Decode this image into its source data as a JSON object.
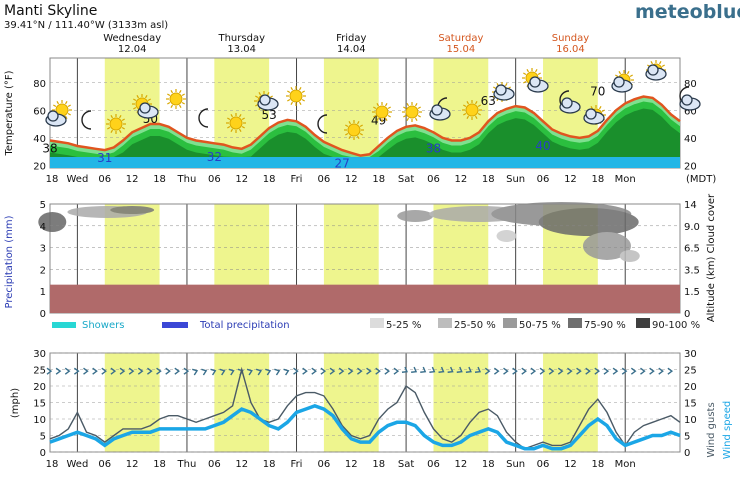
{
  "header": {
    "location": "Manti Skyline",
    "coords": "39.41°N / 111.40°W (3133m asl)",
    "brand": "meteoblue"
  },
  "colors": {
    "day_band": "#eef58e",
    "temp_fill_dark": "#1a8f2c",
    "temp_fill_mid": "#2bbf3f",
    "temp_fill_light": "#7fe08f",
    "temp_line": "#e0551f",
    "cold_band": "#23b6e6",
    "precip_band": "#b06a6a",
    "showers": "#28d7d4",
    "total_precip": "#3b47d6",
    "wind_speed": "#1ba6e6",
    "wind_gusts": "#4a5a66",
    "weekend_label": "#d4561e",
    "precip_axis_label": "#2b3cb4",
    "wind_axis_label": "#1ba6e6"
  },
  "days": [
    {
      "name": "Wednesday",
      "date": "12.04",
      "weekend": false
    },
    {
      "name": "Thursday",
      "date": "13.04",
      "weekend": false
    },
    {
      "name": "Friday",
      "date": "14.04",
      "weekend": false
    },
    {
      "name": "Saturday",
      "date": "15.04",
      "weekend": true
    },
    {
      "name": "Sunday",
      "date": "16.04",
      "weekend": true
    }
  ],
  "x_ticks": [
    "18",
    "Wed",
    "06",
    "12",
    "18",
    "Thu",
    "06",
    "12",
    "18",
    "Fri",
    "06",
    "12",
    "18",
    "Sat",
    "06",
    "12",
    "18",
    "Sun",
    "06",
    "12",
    "18",
    "Mon"
  ],
  "x_unit": "(MDT)",
  "chart_data": [
    {
      "type": "area",
      "name": "temperature",
      "ylabel": "Temperature (°F)",
      "yticks": [
        20,
        40,
        60,
        80
      ],
      "ylim": [
        18,
        98
      ],
      "x_hours": [
        0,
        2,
        4,
        6,
        8,
        10,
        12,
        14,
        16,
        18,
        20,
        22,
        24,
        26,
        28,
        30,
        32,
        34,
        36,
        38,
        40,
        42,
        44,
        46,
        48,
        50,
        52,
        54,
        56,
        58,
        60,
        62,
        64,
        66,
        68,
        70,
        72,
        74,
        76,
        78,
        80,
        82,
        84,
        86,
        88,
        90,
        92,
        94,
        96,
        98,
        100,
        102,
        104,
        106,
        108,
        110,
        112,
        114,
        116,
        118,
        120,
        122,
        124,
        126,
        128,
        130,
        132,
        134,
        136,
        138
      ],
      "values": [
        38,
        37,
        36,
        34,
        33,
        32,
        31,
        33,
        38,
        44,
        47,
        50,
        50,
        48,
        44,
        40,
        38,
        37,
        36,
        35,
        33,
        32,
        35,
        41,
        47,
        51,
        53,
        52,
        48,
        42,
        37,
        34,
        31,
        29,
        27,
        28,
        34,
        40,
        45,
        48,
        49,
        47,
        44,
        40,
        38,
        38,
        40,
        44,
        52,
        58,
        61,
        63,
        62,
        58,
        52,
        46,
        43,
        41,
        40,
        41,
        45,
        53,
        60,
        65,
        68,
        70,
        69,
        64,
        57,
        52
      ],
      "min_labels": [
        {
          "x": 0,
          "text": "38"
        },
        {
          "x": 12,
          "text": "31"
        },
        {
          "x": 36,
          "text": "32"
        },
        {
          "x": 64,
          "text": "27"
        },
        {
          "x": 84,
          "text": "38"
        },
        {
          "x": 108,
          "text": "40"
        }
      ],
      "max_labels": [
        {
          "x": 22,
          "text": "50"
        },
        {
          "x": 48,
          "text": "53"
        },
        {
          "x": 72,
          "text": "49"
        },
        {
          "x": 96,
          "text": "63"
        },
        {
          "x": 120,
          "text": "70"
        }
      ]
    },
    {
      "type": "heatmap",
      "name": "precipitation-cloud-cover",
      "ylabel_left": "Precipitation (mm)",
      "ylabel_right": "Altitude (km) Cloud cover",
      "yticks_left": [
        0,
        1,
        2,
        3,
        4,
        5
      ],
      "yticks_right": [
        "0",
        "1.5",
        "3.5",
        "6.5",
        "9.0",
        "14"
      ],
      "precipitation_mm": 0,
      "legend_precip": [
        "Showers",
        "Total precipitation"
      ],
      "legend_cloud": [
        "5-25 %",
        "25-50 %",
        "50-75 %",
        "75-90 %",
        "90-100 %"
      ]
    },
    {
      "type": "line",
      "name": "wind",
      "ylabel_left": "(mph)",
      "ylabel_right": "Wind gusts  Wind speed",
      "yticks": [
        0,
        5,
        10,
        15,
        20,
        25,
        30
      ],
      "ylim": [
        0,
        30
      ],
      "x_hours": [
        0,
        2,
        4,
        6,
        8,
        10,
        12,
        14,
        16,
        18,
        20,
        22,
        24,
        26,
        28,
        30,
        32,
        34,
        36,
        38,
        40,
        42,
        44,
        46,
        48,
        50,
        52,
        54,
        56,
        58,
        60,
        62,
        64,
        66,
        68,
        70,
        72,
        74,
        76,
        78,
        80,
        82,
        84,
        86,
        88,
        90,
        92,
        94,
        96,
        98,
        100,
        102,
        104,
        106,
        108,
        110,
        112,
        114,
        116,
        118,
        120,
        122,
        124,
        126,
        128,
        130,
        132,
        134,
        136,
        138
      ],
      "series": [
        {
          "name": "Wind gusts",
          "values": [
            4,
            5,
            7,
            12,
            6,
            5,
            3,
            5,
            7,
            7,
            7,
            8,
            10,
            11,
            11,
            10,
            9,
            10,
            11,
            12,
            14,
            25,
            15,
            10,
            9,
            10,
            14,
            17,
            18,
            18,
            17,
            13,
            8,
            5,
            4,
            5,
            10,
            13,
            15,
            20,
            18,
            12,
            7,
            4,
            3,
            5,
            9,
            12,
            13,
            11,
            6,
            3,
            1,
            2,
            3,
            2,
            2,
            3,
            8,
            13,
            16,
            12,
            6,
            2,
            6,
            8,
            9,
            10,
            11,
            9
          ],
          "note": ""
        },
        {
          "name": "Wind speed",
          "values": [
            3,
            4,
            5,
            6,
            5,
            4,
            2,
            4,
            5,
            6,
            6,
            6,
            7,
            7,
            7,
            7,
            7,
            7,
            8,
            9,
            11,
            13,
            12,
            10,
            8,
            7,
            9,
            12,
            13,
            14,
            13,
            11,
            7,
            4,
            3,
            3,
            6,
            8,
            9,
            9,
            8,
            5,
            3,
            2,
            2,
            3,
            5,
            6,
            7,
            6,
            3,
            2,
            1,
            1,
            2,
            1,
            1,
            2,
            5,
            8,
            10,
            8,
            4,
            2,
            3,
            4,
            5,
            5,
            6,
            5
          ]
        }
      ]
    }
  ]
}
